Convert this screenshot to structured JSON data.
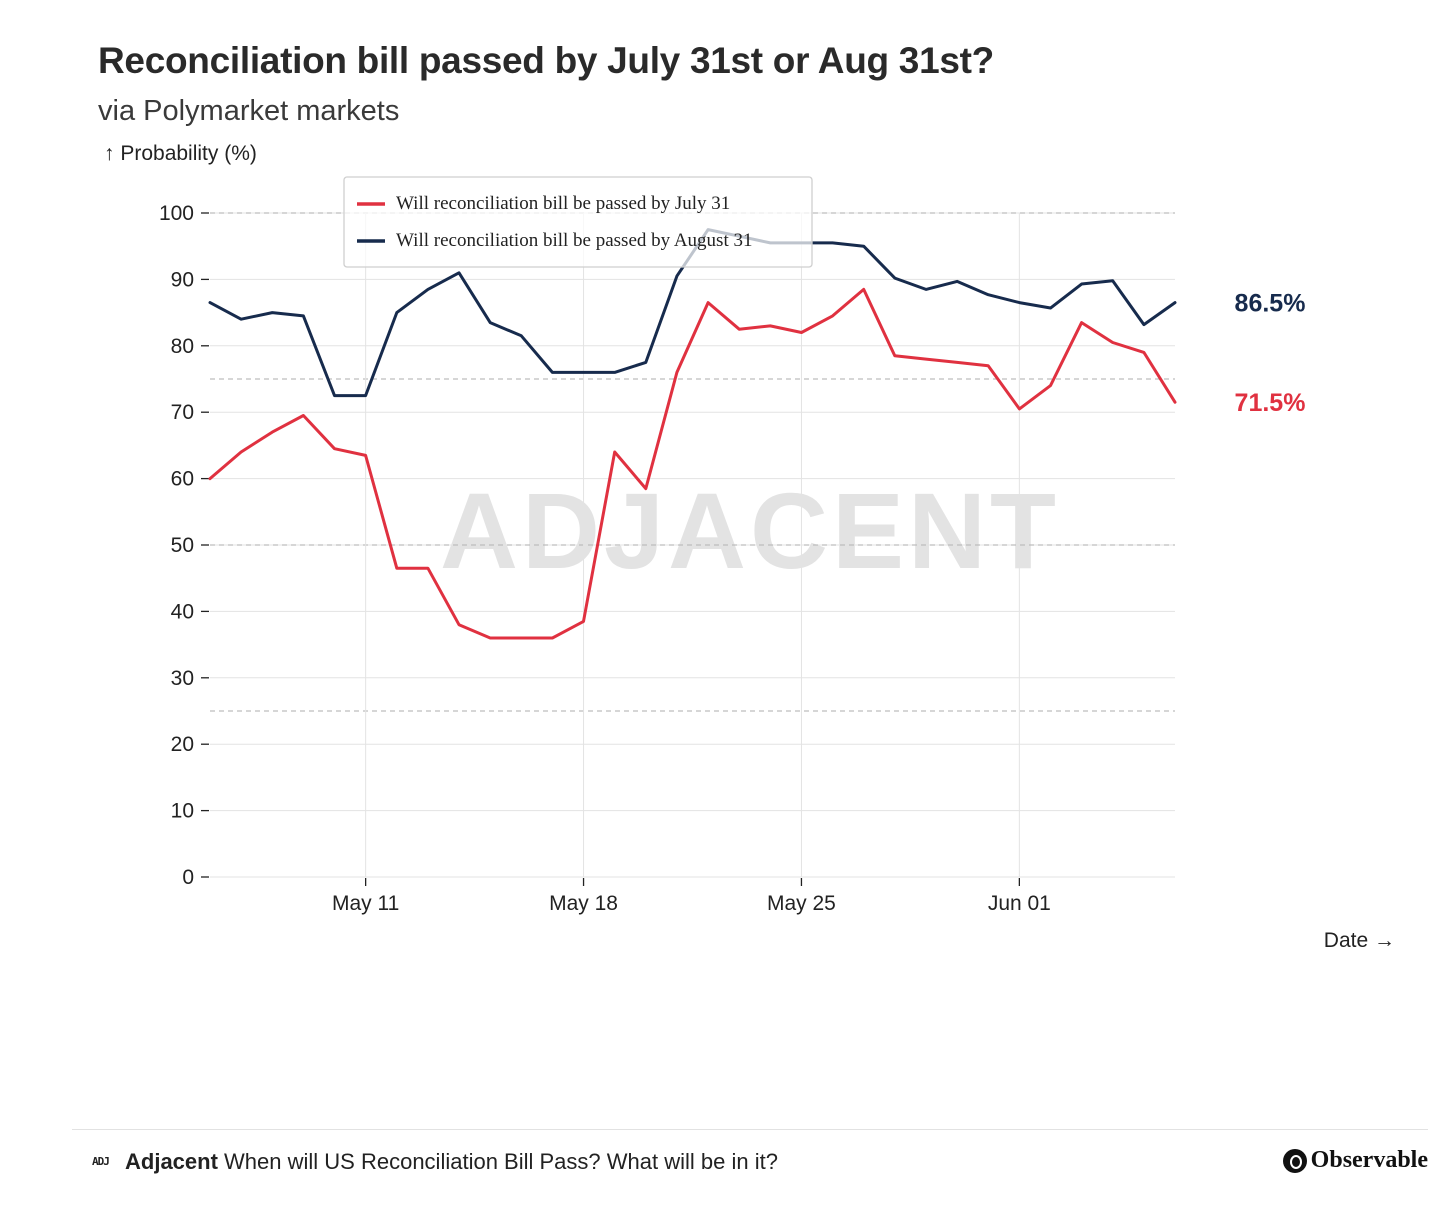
{
  "title": "Reconciliation bill passed by July 31st or Aug 31st?",
  "subtitle": "via Polymarket markets",
  "watermark": "ADJACENT",
  "chart_data": {
    "type": "line",
    "ylabel": "↑ Probability (%)",
    "xlabel": "Date →",
    "ylim": [
      0,
      100
    ],
    "yticks": [
      0,
      10,
      20,
      30,
      40,
      50,
      60,
      70,
      80,
      90,
      100
    ],
    "xticks": [
      "May 11",
      "May 18",
      "May 25",
      "Jun 01"
    ],
    "xrange": [
      "May 06",
      "Jun 06"
    ],
    "x": [
      "May 06",
      "May 07",
      "May 08",
      "May 09",
      "May 10",
      "May 11",
      "May 12",
      "May 13",
      "May 14",
      "May 15",
      "May 16",
      "May 17",
      "May 18",
      "May 19",
      "May 20",
      "May 21",
      "May 22",
      "May 23",
      "May 24",
      "May 25",
      "May 26",
      "May 27",
      "May 28",
      "May 29",
      "May 30",
      "May 31",
      "Jun 01",
      "Jun 02",
      "Jun 03",
      "Jun 04",
      "Jun 05",
      "Jun 06"
    ],
    "grid": "on",
    "legend_position": "top-left",
    "series": [
      {
        "name": "Will reconciliation bill be passed by July 31",
        "color": "#e03140",
        "end_label": "71.5%",
        "values": [
          60,
          64,
          67,
          69.5,
          64.5,
          63.5,
          46.5,
          46.5,
          38,
          36,
          36,
          36,
          38.5,
          64,
          58.5,
          76,
          86.5,
          82.5,
          83,
          82,
          84.5,
          88.5,
          78.5,
          78,
          77.5,
          77,
          70.5,
          74,
          83.5,
          80.5,
          79,
          71.5
        ]
      },
      {
        "name": "Will reconciliation bill be passed by August 31",
        "color": "#172b4d",
        "end_label": "86.5%",
        "values": [
          86.5,
          84,
          85,
          84.5,
          72.5,
          72.5,
          85,
          88.5,
          91,
          83.5,
          81.5,
          76,
          76,
          76,
          77.5,
          90.5,
          97.5,
          96.5,
          95.5,
          95.5,
          95.5,
          95,
          90.2,
          88.5,
          89.7,
          87.7,
          86.5,
          85.7,
          89.3,
          89.8,
          83.2,
          86.5
        ]
      }
    ]
  },
  "footer": {
    "logo": "ADJ",
    "brand": "Adjacent",
    "text": "When will US Reconciliation Bill Pass? What will be in it?",
    "platform": "Observable"
  }
}
